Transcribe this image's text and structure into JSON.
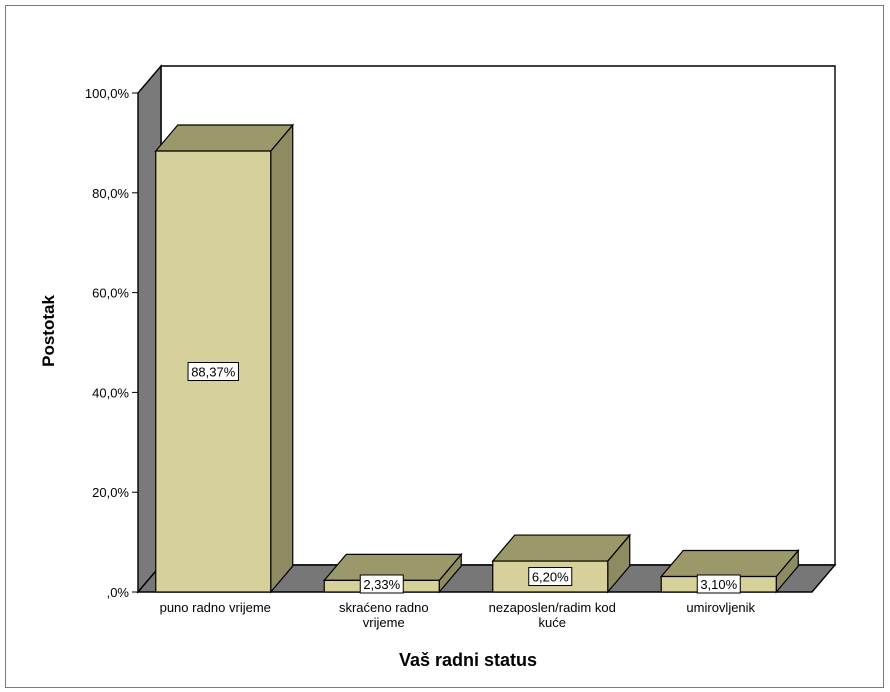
{
  "chart_data": {
    "type": "bar",
    "categories": [
      [
        "puno radno vrijeme"
      ],
      [
        "skraćeno radno",
        "vrijeme"
      ],
      [
        "nezaposlen/radim kod",
        "kuće"
      ],
      [
        "umirovljenik"
      ]
    ],
    "values": [
      88.37,
      2.33,
      6.2,
      3.1
    ],
    "data_labels": [
      "88,37%",
      "2,33%",
      "6,20%",
      "3,10%"
    ],
    "xlabel": "Vaš radni status",
    "ylabel": "Postotak",
    "ylim": [
      0,
      100
    ],
    "yticks": [
      ",0%",
      "20,0%",
      "40,0%",
      "60,0%",
      "80,0%",
      "100,0%"
    ],
    "grid": false,
    "legend": "none",
    "style": "3d",
    "colors": {
      "bar_front": "#d6d19b",
      "bar_side": "#8e8b62",
      "bar_top": "#9b9869",
      "back_wall": "#ffffff",
      "side_wall": "#7a7a7a",
      "floor": "#777777"
    }
  }
}
